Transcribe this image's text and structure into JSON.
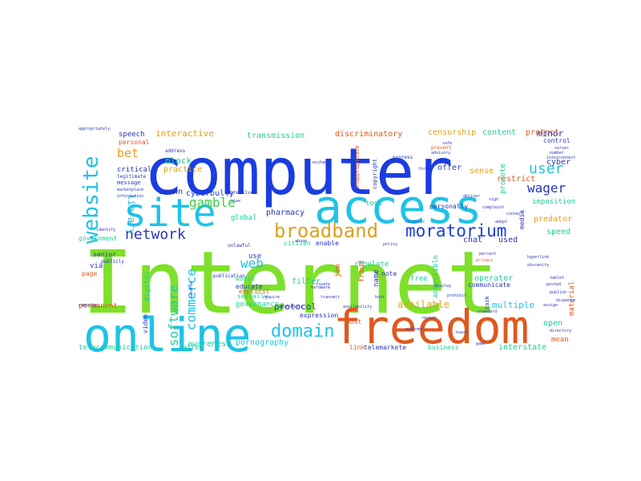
{
  "palette": {
    "dark_blue": "#1a3de0",
    "sky_blue": "#1ec3e6",
    "lime": "#7ee02a",
    "orange": "#e0581e",
    "amber": "#e0a01e",
    "teal": "#1ecf9a",
    "green": "#3cd04a",
    "navy": "#2a36b8"
  },
  "words": [
    {
      "text": "Internet",
      "color": "lime"
    },
    {
      "text": "computer",
      "color": "dark_blue"
    },
    {
      "text": "access",
      "color": "sky_blue"
    },
    {
      "text": "freedom",
      "color": "orange"
    },
    {
      "text": "online",
      "color": "sky_blue"
    },
    {
      "text": "site",
      "color": "sky_blue"
    },
    {
      "text": "website",
      "color": "sky_blue"
    },
    {
      "text": "broadband",
      "color": "amber"
    },
    {
      "text": "moratorium",
      "color": "dark_blue"
    },
    {
      "text": "domain",
      "color": "sky_blue"
    },
    {
      "text": "network",
      "color": "navy"
    },
    {
      "text": "gamble",
      "color": "green"
    },
    {
      "text": "user",
      "color": "sky_blue"
    },
    {
      "text": "wager",
      "color": "navy"
    },
    {
      "text": "software",
      "color": "teal"
    },
    {
      "text": "commerce",
      "color": "sky_blue"
    },
    {
      "text": "web",
      "color": "sky_blue"
    },
    {
      "text": "library",
      "color": "sky_blue"
    },
    {
      "text": "bet",
      "color": "amber"
    },
    {
      "text": "pornography",
      "color": "sky_blue"
    },
    {
      "text": "available",
      "color": "amber"
    },
    {
      "text": "protocol",
      "color": "navy"
    },
    {
      "text": "multiple",
      "color": "sky_blue"
    },
    {
      "text": "interactive",
      "color": "amber"
    },
    {
      "text": "transmission",
      "color": "teal"
    },
    {
      "text": "discriminatory",
      "color": "orange"
    },
    {
      "text": "censorship",
      "color": "amber"
    },
    {
      "text": "content",
      "color": "teal"
    },
    {
      "text": "protect",
      "color": "orange"
    },
    {
      "text": "control",
      "color": "navy"
    },
    {
      "text": "speech",
      "color": "navy"
    },
    {
      "text": "personal",
      "color": "orange"
    },
    {
      "text": "block",
      "color": "teal"
    },
    {
      "text": "practice",
      "color": "amber"
    },
    {
      "text": "critical",
      "color": "navy"
    },
    {
      "text": "legitimate",
      "color": "navy"
    },
    {
      "text": "message",
      "color": "navy"
    },
    {
      "text": "icann",
      "color": "navy"
    },
    {
      "text": "cyberbully",
      "color": "dark_blue"
    },
    {
      "text": "repressive",
      "color": "navy"
    },
    {
      "text": "offer",
      "color": "navy"
    },
    {
      "text": "sense",
      "color": "amber"
    },
    {
      "text": "restrict",
      "color": "orange"
    },
    {
      "text": "minor",
      "color": "navy"
    },
    {
      "text": "cyber",
      "color": "navy"
    },
    {
      "text": "imposition",
      "color": "teal"
    },
    {
      "text": "predator",
      "color": "amber"
    },
    {
      "text": "speed",
      "color": "teal"
    },
    {
      "text": "used",
      "color": "navy"
    },
    {
      "text": "chat",
      "color": "navy"
    },
    {
      "text": "copyright",
      "color": "navy"
    },
    {
      "text": "inappropriate",
      "color": "orange"
    },
    {
      "text": "promote",
      "color": "teal"
    },
    {
      "text": "media",
      "color": "navy"
    },
    {
      "text": "global",
      "color": "teal"
    },
    {
      "text": "use",
      "color": "navy"
    },
    {
      "text": "world",
      "color": "teal"
    },
    {
      "text": "educate",
      "color": "navy"
    },
    {
      "text": "explicit",
      "color": "orange"
    },
    {
      "text": "governance",
      "color": "teal"
    },
    {
      "text": "pharmacy",
      "color": "navy"
    },
    {
      "text": "citizen",
      "color": "teal"
    },
    {
      "text": "tool",
      "color": "teal"
    },
    {
      "text": "personally",
      "color": "navy"
    },
    {
      "text": "enable",
      "color": "navy"
    },
    {
      "text": "filter",
      "color": "teal"
    },
    {
      "text": "regulate",
      "color": "teal"
    },
    {
      "text": "fraud",
      "color": "orange"
    },
    {
      "text": "jam",
      "color": "orange"
    },
    {
      "text": "name",
      "color": "navy"
    },
    {
      "text": "note",
      "color": "navy"
    },
    {
      "text": "free",
      "color": "teal"
    },
    {
      "text": "accessible",
      "color": "teal"
    },
    {
      "text": "operator",
      "color": "teal"
    },
    {
      "text": "communicate",
      "color": "navy"
    },
    {
      "text": "material",
      "color": "orange"
    },
    {
      "text": "open",
      "color": "teal"
    },
    {
      "text": "mean",
      "color": "orange"
    },
    {
      "text": "interstate",
      "color": "teal"
    },
    {
      "text": "business",
      "color": "teal"
    },
    {
      "text": "telemarkete",
      "color": "navy"
    },
    {
      "text": "link",
      "color": "orange"
    },
    {
      "text": "awareness",
      "color": "teal"
    },
    {
      "text": "post",
      "color": "orange"
    },
    {
      "text": "expression",
      "color": "navy"
    },
    {
      "text": "telecommunication",
      "color": "teal"
    },
    {
      "text": "seller",
      "color": "teal"
    },
    {
      "text": "permanent",
      "color": "orange"
    },
    {
      "text": "government",
      "color": "teal"
    },
    {
      "text": "senior",
      "color": "navy"
    },
    {
      "text": "publicly",
      "color": "navy"
    },
    {
      "text": "via",
      "color": "navy"
    },
    {
      "text": "page",
      "color": "orange"
    },
    {
      "text": "digital",
      "color": "teal"
    },
    {
      "text": "sexually",
      "color": "teal"
    },
    {
      "text": "unlawful",
      "color": "navy"
    },
    {
      "text": "publication",
      "color": "navy"
    },
    {
      "text": "video",
      "color": "navy"
    },
    {
      "text": "task",
      "color": "navy"
    },
    {
      "text": "address",
      "color": "navy"
    },
    {
      "text": "marketplace",
      "color": "navy"
    },
    {
      "text": "information",
      "color": "navy"
    },
    {
      "text": "appropriately",
      "color": "navy"
    },
    {
      "text": "server",
      "color": "navy"
    },
    {
      "text": "express",
      "color": "navy"
    },
    {
      "text": "format",
      "color": "navy"
    },
    {
      "text": "campaign",
      "color": "navy"
    },
    {
      "text": "obscenity",
      "color": "navy"
    },
    {
      "text": "advisory",
      "color": "navy"
    },
    {
      "text": "connect",
      "color": "navy"
    },
    {
      "text": "display",
      "color": "navy"
    },
    {
      "text": "hyperlink",
      "color": "navy"
    },
    {
      "text": "complaint",
      "color": "navy"
    },
    {
      "text": "privacy",
      "color": "orange"
    },
    {
      "text": "assign",
      "color": "navy"
    },
    {
      "text": "publish",
      "color": "navy"
    },
    {
      "text": "posted",
      "color": "navy"
    },
    {
      "text": "directory",
      "color": "navy"
    },
    {
      "text": "economy",
      "color": "navy"
    },
    {
      "text": "license",
      "color": "navy"
    },
    {
      "text": "searchable",
      "color": "navy"
    },
    {
      "text": "protect",
      "color": "navy"
    },
    {
      "text": "historic",
      "color": "navy"
    },
    {
      "text": "exchange",
      "color": "navy"
    },
    {
      "text": "interconnect",
      "color": "navy"
    },
    {
      "text": "number",
      "color": "navy"
    },
    {
      "text": "safe",
      "color": "navy"
    },
    {
      "text": "prevent",
      "color": "orange"
    },
    {
      "text": "standard",
      "color": "navy"
    },
    {
      "text": "hardware",
      "color": "navy"
    },
    {
      "text": "game",
      "color": "navy"
    },
    {
      "text": "availability",
      "color": "navy"
    },
    {
      "text": "prohibit",
      "color": "navy"
    },
    {
      "text": "view",
      "color": "navy"
    },
    {
      "text": "host",
      "color": "navy"
    },
    {
      "text": "policy",
      "color": "navy"
    },
    {
      "text": "percent",
      "color": "navy"
    },
    {
      "text": "adopt",
      "color": "navy"
    },
    {
      "text": "create",
      "color": "navy"
    },
    {
      "text": "require",
      "color": "navy"
    },
    {
      "text": "transmit",
      "color": "navy"
    },
    {
      "text": "tablet",
      "color": "navy"
    },
    {
      "text": "dispense",
      "color": "navy"
    },
    {
      "text": "record",
      "color": "navy"
    },
    {
      "text": "identify",
      "color": "navy"
    },
    {
      "text": "abuse",
      "color": "navy"
    },
    {
      "text": "deliver",
      "color": "navy"
    },
    {
      "text": "teach",
      "color": "navy"
    },
    {
      "text": "sign",
      "color": "navy"
    }
  ]
}
